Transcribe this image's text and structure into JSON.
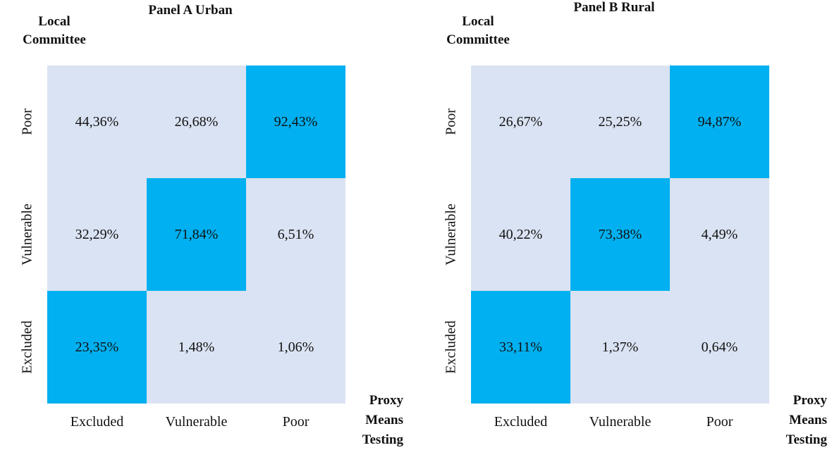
{
  "chart_data": [
    {
      "type": "heatmap",
      "title": "Panel A Urban",
      "y_label": "Local Committee",
      "x_label": "Proxy Means Testing",
      "x_categories": [
        "Excluded",
        "Vulnerable",
        "Poor"
      ],
      "y_categories": [
        "Poor",
        "Vulnerable",
        "Excluded"
      ],
      "values": [
        [
          44.36,
          26.68,
          92.43
        ],
        [
          32.29,
          71.84,
          6.51
        ],
        [
          23.35,
          1.48,
          1.06
        ]
      ],
      "value_labels": [
        [
          "44,36%",
          "26,68%",
          "92,43%"
        ],
        [
          "32,29%",
          "71,84%",
          "6,51%"
        ],
        [
          "23,35%",
          "1,48%",
          "1,06%"
        ]
      ],
      "color": "#dae3f3",
      "highlight_color": "#00b0f0"
    },
    {
      "type": "heatmap",
      "title": "Panel B Rural",
      "y_label": "Local Committee",
      "x_label": "Proxy Means Testing",
      "x_categories": [
        "Excluded",
        "Vulnerable",
        "Poor"
      ],
      "y_categories": [
        "Poor",
        "Vulnerable",
        "Excluded"
      ],
      "values": [
        [
          26.67,
          25.25,
          94.87
        ],
        [
          40.22,
          73.38,
          4.49
        ],
        [
          33.11,
          1.37,
          0.64
        ]
      ],
      "value_labels": [
        [
          "26,67%",
          "25,25%",
          "94,87%"
        ],
        [
          "40,22%",
          "73,38%",
          "4,49%"
        ],
        [
          "33,11%",
          "1,37%",
          "0,64%"
        ]
      ],
      "color": "#dae3f3",
      "highlight_color": "#00b0f0"
    }
  ]
}
